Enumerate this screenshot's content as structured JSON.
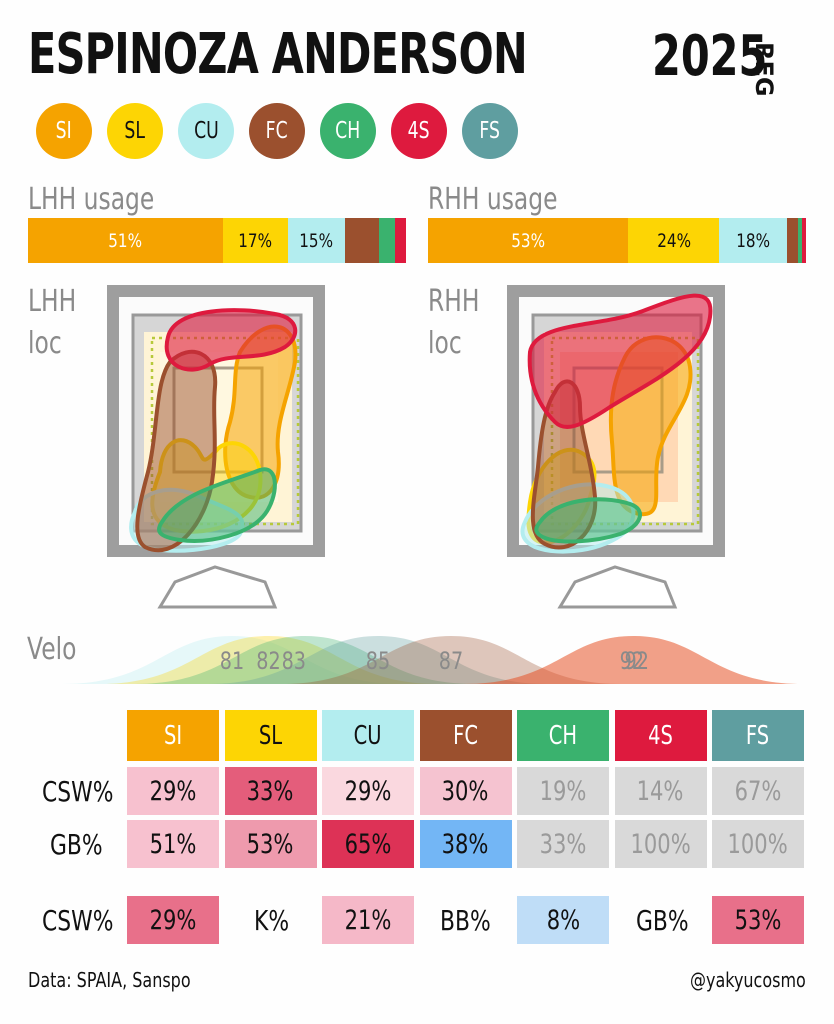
{
  "title": "ESPINOZA ANDERSON",
  "year": "2025",
  "season": "REG",
  "pitches": [
    {
      "code": "SI",
      "color": "#F5A300",
      "text": "#fff"
    },
    {
      "code": "SL",
      "color": "#FDD504",
      "text": "#111"
    },
    {
      "code": "CU",
      "color": "#B3EDEF",
      "text": "#111"
    },
    {
      "code": "FC",
      "color": "#9B502E",
      "text": "#fff"
    },
    {
      "code": "CH",
      "color": "#3AB26E",
      "text": "#fff"
    },
    {
      "code": "4S",
      "color": "#DE1A3E",
      "text": "#fff"
    },
    {
      "code": "FS",
      "color": "#5F9EA0",
      "text": "#fff"
    }
  ],
  "labels": {
    "lhh_usage": "LHH usage",
    "rhh_usage": "RHH usage",
    "lhh_loc_1": "LHH",
    "lhh_loc_2": "loc",
    "rhh_loc_1": "RHH",
    "rhh_loc_2": "loc",
    "velo": "Velo"
  },
  "chart_data": [
    {
      "type": "bar",
      "title": "LHH usage",
      "categories": [
        "SI",
        "SL",
        "CU",
        "FC",
        "CH",
        "4S",
        "FS"
      ],
      "values": [
        51,
        17,
        15,
        9,
        4,
        3,
        0
      ],
      "labels": [
        "51%",
        "17%",
        "15%",
        "",
        "",
        "",
        ""
      ]
    },
    {
      "type": "bar",
      "title": "RHH usage",
      "categories": [
        "SI",
        "SL",
        "CU",
        "FC",
        "CH",
        "4S",
        "FS"
      ],
      "values": [
        53,
        24,
        18,
        3,
        1,
        1,
        0
      ],
      "labels": [
        "53%",
        "24%",
        "18%",
        "",
        "",
        "",
        ""
      ]
    },
    {
      "type": "area",
      "title": "Velo",
      "series": [
        {
          "name": "CU",
          "peak": 81
        },
        {
          "name": "SL",
          "peak": 82
        },
        {
          "name": "CH",
          "peak": 83
        },
        {
          "name": "FS",
          "peak": 85
        },
        {
          "name": "FC",
          "peak": 87
        },
        {
          "name": "SI",
          "peak": 92
        },
        {
          "name": "4S",
          "peak": 92
        }
      ],
      "peak_labels": [
        "81",
        "82",
        "83",
        "85",
        "87",
        "92",
        "92"
      ]
    },
    {
      "type": "table",
      "columns": [
        "SI",
        "SL",
        "CU",
        "FC",
        "CH",
        "4S",
        "FS"
      ],
      "rows": [
        {
          "label": "CSW%",
          "values": [
            "29%",
            "33%",
            "29%",
            "30%",
            "19%",
            "14%",
            "67%"
          ]
        },
        {
          "label": "GB%",
          "values": [
            "51%",
            "53%",
            "65%",
            "38%",
            "33%",
            "100%",
            "100%"
          ]
        }
      ]
    }
  ],
  "cell_colors": [
    [
      "#F7C1CF",
      "#E45D7B",
      "#FAD8DF",
      "#F5C3D0",
      "#D9D9D9",
      "#D9D9D9",
      "#D9D9D9"
    ],
    [
      "#F7C1CF",
      "#EE9AAD",
      "#DD3256",
      "#73B6F5",
      "#D9D9D9",
      "#D9D9D9",
      "#D9D9D9"
    ]
  ],
  "cell_dim": [
    [
      false,
      false,
      false,
      false,
      true,
      true,
      true
    ],
    [
      false,
      false,
      false,
      false,
      true,
      true,
      true
    ]
  ],
  "summary": [
    {
      "label": "CSW%",
      "value": "29%",
      "color": "#E8708A"
    },
    {
      "label": "K%",
      "value": "21%",
      "color": "#F5B8C8"
    },
    {
      "label": "BB%",
      "value": "8%",
      "color": "#BFDDF7"
    },
    {
      "label": "GB%",
      "value": "53%",
      "color": "#E8708A"
    }
  ],
  "footer": {
    "source": "Data: SPAIA, Sanspo",
    "credit": "@yakyucosmo"
  }
}
